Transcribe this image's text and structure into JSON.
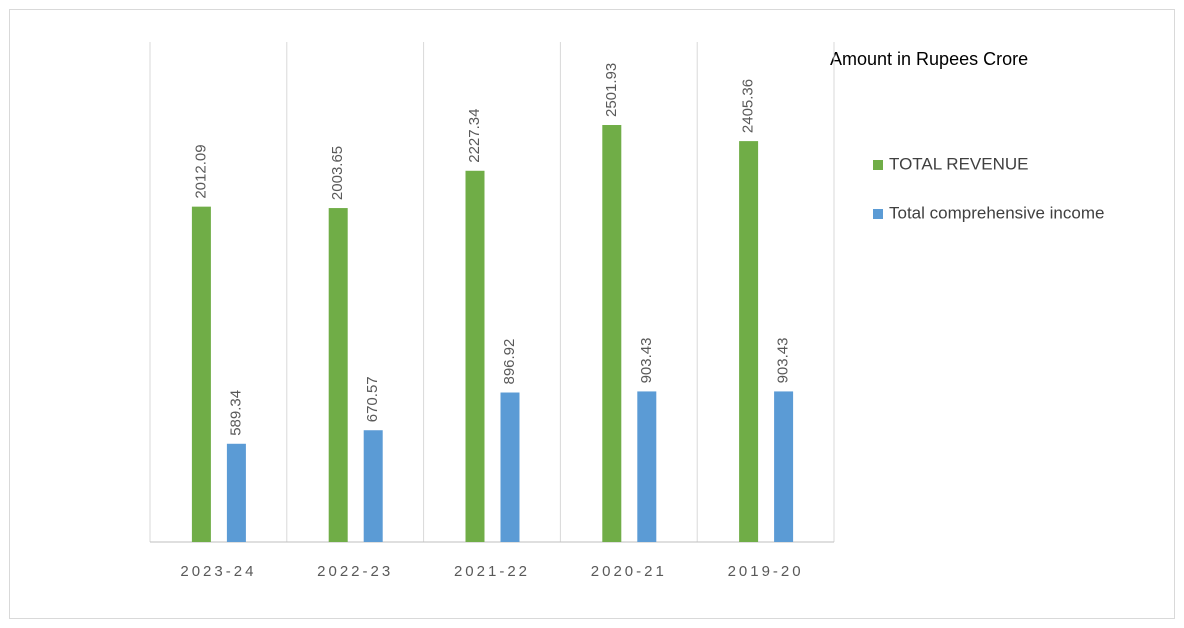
{
  "chart_data": {
    "type": "bar",
    "title": "Amount in Rupees Crore",
    "categories": [
      "2023-24",
      "2022-23",
      "2021-22",
      "2020-21",
      "2019-20"
    ],
    "series": [
      {
        "name": "TOTAL REVENUE",
        "color": "#70ad47",
        "values": [
          2012.09,
          2003.65,
          2227.34,
          2501.93,
          2405.36
        ]
      },
      {
        "name": "Total comprehensive income",
        "color": "#5b9bd5",
        "values": [
          589.34,
          670.57,
          896.92,
          903.43,
          903.43
        ]
      }
    ],
    "ylim": [
      0,
      3000
    ],
    "legend": "right"
  }
}
